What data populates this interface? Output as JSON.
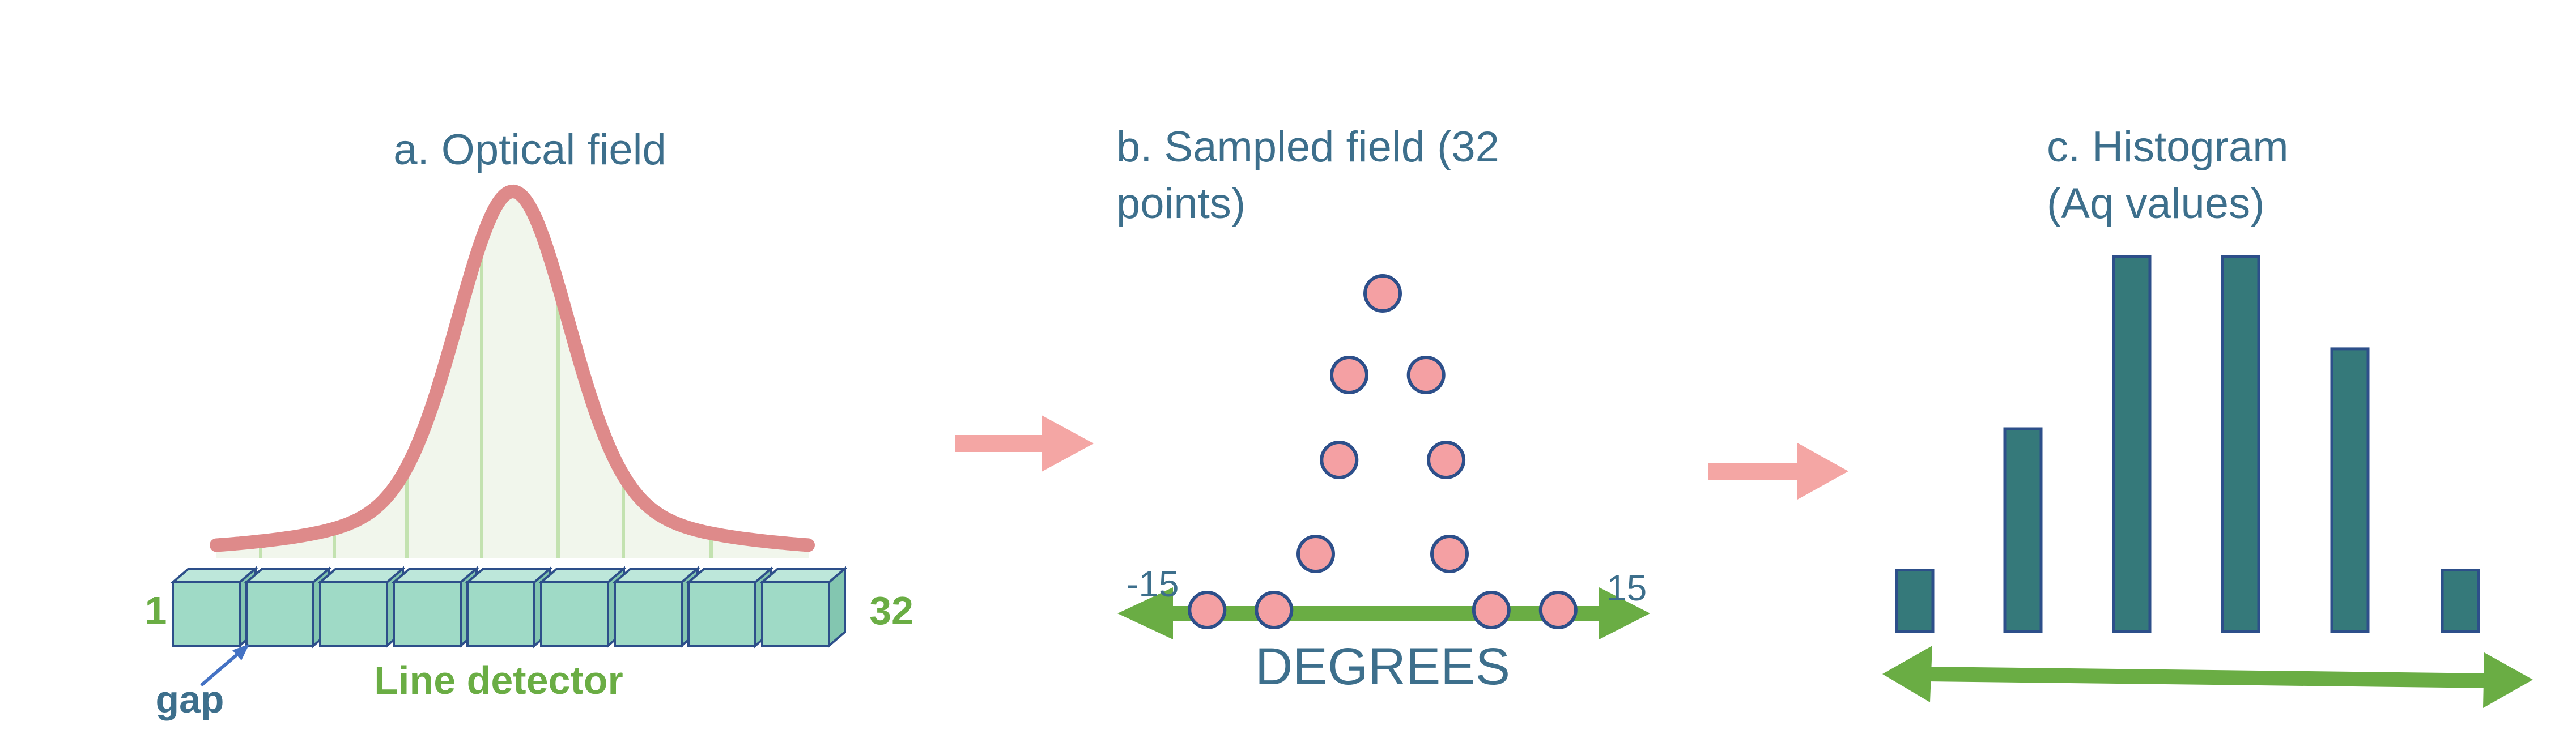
{
  "colors": {
    "title": "#3d6f8c",
    "curve": "#de8a8a",
    "curve_fill": "#f1f6ec",
    "stripes": "#c3e2b0",
    "detector_face": "#9fdac6",
    "detector_top": "#bde7da",
    "detector_side": "#83c6b0",
    "detector_edge": "#2d4f8a",
    "detector_label": "#6aad44",
    "gap_label": "#3d6f8c",
    "gap_arrow": "#4472c4",
    "flow_arrow": "#f4a6a4",
    "axis_arrow": "#6aad44",
    "dot_fill": "#f4a0a3",
    "dot_stroke": "#2d4f8a",
    "bar_fill": "#35797a",
    "bar_stroke": "#2d4f8a",
    "degrees_label": "#3d6f8c"
  },
  "panel_a": {
    "title": "a. Optical field",
    "detector_label": "Line detector",
    "start_label": "1",
    "end_label": "32",
    "gap_label": "gap",
    "pixel_count_drawn": 9
  },
  "panel_b": {
    "title_line1": "b. Sampled field (32",
    "title_line2": "points)",
    "axis_min_label": "-15",
    "axis_max_label": "15",
    "axis_title": "DEGREES",
    "points": [
      {
        "x": -10.5,
        "level": 0
      },
      {
        "x": -6.5,
        "level": 0
      },
      {
        "x": 6.5,
        "level": 0
      },
      {
        "x": 10.5,
        "level": 0
      },
      {
        "x": -4.0,
        "level": 1
      },
      {
        "x": 4.0,
        "level": 1
      },
      {
        "x": -2.6,
        "level": 2
      },
      {
        "x": 3.8,
        "level": 2
      },
      {
        "x": -2.0,
        "level": 3
      },
      {
        "x": 2.6,
        "level": 3
      },
      {
        "x": 0.0,
        "level": 4
      }
    ]
  },
  "panel_c": {
    "title_line1": "c. Histogram",
    "title_line2": "(Aq values)",
    "chart_data": {
      "type": "bar",
      "values": [
        1,
        3.3,
        6.1,
        6.1,
        4.6,
        1
      ]
    }
  }
}
